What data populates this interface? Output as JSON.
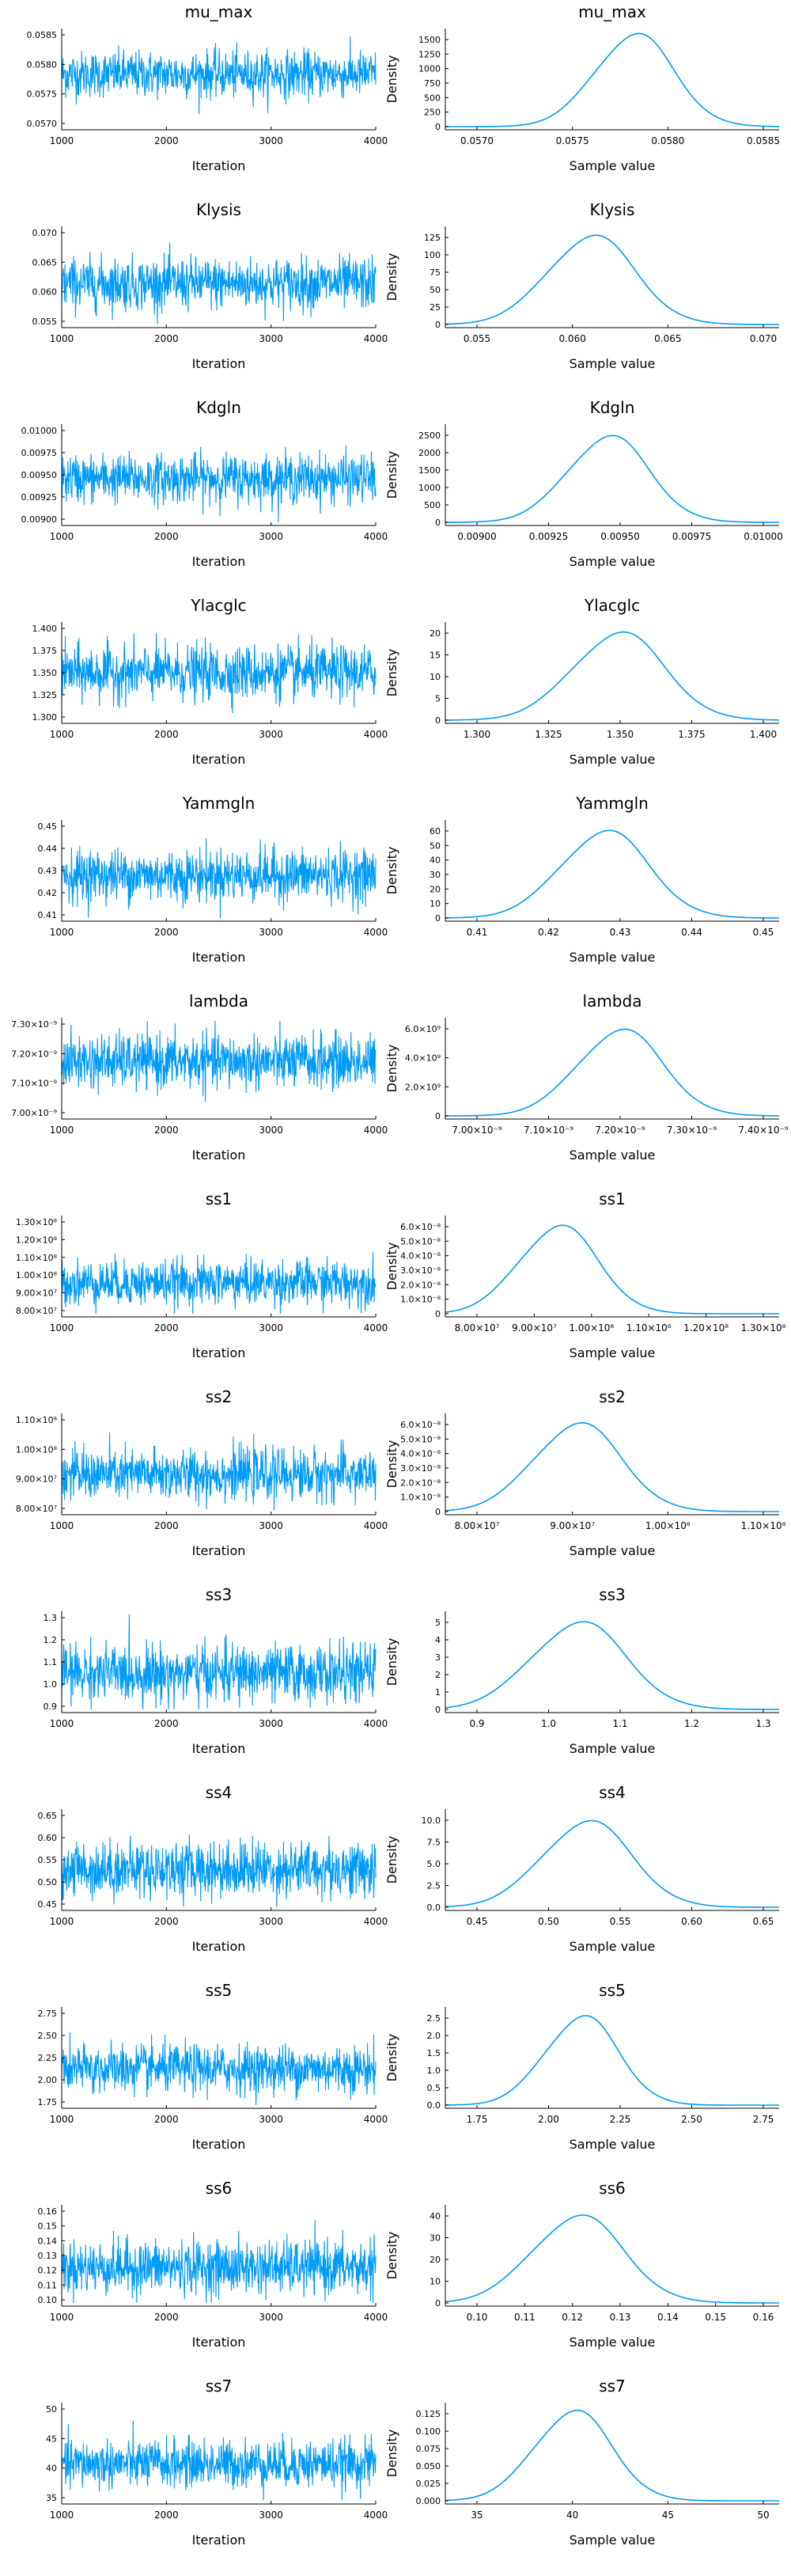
{
  "chart_data": [
    {
      "param": "mu_max",
      "trace": {
        "type": "line",
        "title": "mu_max",
        "xlabel": "Iteration",
        "ylabel": "",
        "xlim": [
          1000,
          4000
        ],
        "yticks": [
          "0.0570",
          "0.0575",
          "0.0580",
          "0.0585"
        ],
        "ylim": [
          0.05685,
          0.05875
        ],
        "mean": 0.0579,
        "sd": 0.00023
      },
      "density": {
        "type": "line",
        "title": "mu_max",
        "xlabel": "Sample value",
        "ylabel": "Density",
        "xticks": [
          "0.0570",
          "0.0575",
          "0.0580",
          "0.0585"
        ],
        "xlim": [
          0.0568,
          0.05875
        ],
        "yticks": [
          "0",
          "250",
          "500",
          "750",
          "1000",
          "1250",
          "1500"
        ],
        "ylim": [
          0,
          1750
        ],
        "peak_x": 0.0579,
        "peak_y": 1700,
        "sd": 0.00023
      }
    },
    {
      "param": "Klysis",
      "trace": {
        "type": "line",
        "title": "Klysis",
        "xlabel": "Iteration",
        "ylabel": "",
        "xlim": [
          1000,
          4000
        ],
        "yticks": [
          "0.055",
          "0.060",
          "0.065",
          "0.070"
        ],
        "ylim": [
          0.0515,
          0.0735
        ],
        "mean": 0.061,
        "sd": 0.003
      },
      "density": {
        "type": "line",
        "title": "Klysis",
        "xlabel": "Sample value",
        "ylabel": "Density",
        "xticks": [
          "0.055",
          "0.060",
          "0.065",
          "0.070"
        ],
        "xlim": [
          0.0505,
          0.0735
        ],
        "yticks": [
          "0",
          "25",
          "50",
          "75",
          "100",
          "125"
        ],
        "ylim": [
          0,
          145
        ],
        "peak_x": 0.0605,
        "peak_y": 135,
        "sd": 0.003
      }
    },
    {
      "param": "Kdgln",
      "trace": {
        "type": "line",
        "title": "Kdgln",
        "xlabel": "Iteration",
        "ylabel": "",
        "xlim": [
          1000,
          4000
        ],
        "yticks": [
          "0.00900",
          "0.00925",
          "0.00950",
          "0.00975",
          "0.01000"
        ],
        "ylim": [
          0.00878,
          0.01012
        ],
        "mean": 0.0094,
        "sd": 0.00017
      },
      "density": {
        "type": "line",
        "title": "Kdgln",
        "xlabel": "Sample value",
        "ylabel": "Density",
        "xticks": [
          "0.00900",
          "0.00925",
          "0.00950",
          "0.00975",
          "0.01000"
        ],
        "xlim": [
          0.00872,
          0.01012
        ],
        "yticks": [
          "0",
          "500",
          "1000",
          "1500",
          "2000",
          "2500"
        ],
        "ylim": [
          0,
          2650
        ],
        "peak_x": 0.0094,
        "peak_y": 2400,
        "sd": 0.00017
      }
    },
    {
      "param": "Ylacglc",
      "trace": {
        "type": "line",
        "title": "Ylacglc",
        "xlabel": "Iteration",
        "ylabel": "",
        "xlim": [
          1000,
          4000
        ],
        "yticks": [
          "1.300",
          "1.325",
          "1.350",
          "1.375",
          "1.400"
        ],
        "ylim": [
          1.288,
          1.408
        ],
        "mean": 1.348,
        "sd": 0.017
      },
      "density": {
        "type": "line",
        "title": "Ylacglc",
        "xlabel": "Sample value",
        "ylabel": "Density",
        "xticks": [
          "1.300",
          "1.325",
          "1.350",
          "1.375",
          "1.400"
        ],
        "xlim": [
          1.284,
          1.408
        ],
        "yticks": [
          "0",
          "5",
          "10",
          "15",
          "20"
        ],
        "ylim": [
          0,
          25
        ],
        "peak_x": 1.348,
        "peak_y": 23,
        "sd": 0.017
      }
    },
    {
      "param": "Yammgln",
      "trace": {
        "type": "line",
        "title": "Yammgln",
        "xlabel": "Iteration",
        "ylabel": "",
        "xlim": [
          1000,
          4000
        ],
        "yticks": [
          "0.41",
          "0.42",
          "0.43",
          "0.44",
          "0.45"
        ],
        "ylim": [
          0.4085,
          0.4535
        ],
        "mean": 0.4288,
        "sd": 0.0062
      },
      "density": {
        "type": "line",
        "title": "Yammgln",
        "xlabel": "Sample value",
        "ylabel": "Density",
        "xticks": [
          "0.41",
          "0.42",
          "0.43",
          "0.44",
          "0.45"
        ],
        "xlim": [
          0.4065,
          0.4535
        ],
        "yticks": [
          "0",
          "10",
          "20",
          "30",
          "40",
          "50",
          "60"
        ],
        "ylim": [
          0,
          70
        ],
        "peak_x": 0.4288,
        "peak_y": 64,
        "sd": 0.0062
      }
    },
    {
      "param": "lambda",
      "trace": {
        "type": "line",
        "title": "lambda",
        "xlabel": "Iteration",
        "ylabel": "",
        "xlim": [
          1000,
          4000
        ],
        "yticks": [
          "7.00×10⁻⁹",
          "7.10×10⁻⁹",
          "7.20×10⁻⁹",
          "7.30×10⁻⁹"
        ],
        "ylim": [
          6.94,
          7.36
        ],
        "mean": 7.18,
        "sd": 0.06
      },
      "density": {
        "type": "line",
        "title": "lambda",
        "xlabel": "Sample value",
        "ylabel": "Density",
        "xticks": [
          "7.00×10⁻⁹",
          "7.10×10⁻⁹",
          "7.20×10⁻⁹",
          "7.30×10⁻⁹",
          "7.40×10⁻⁹"
        ],
        "xlim": [
          6.935,
          7.405
        ],
        "yticks": [
          "0",
          "2.0×10⁹",
          "4.0×10⁹",
          "6.0×10⁹"
        ],
        "ylim": [
          0,
          7.3
        ],
        "peak_x": 7.18,
        "peak_y": 6.6,
        "sd": 0.06
      }
    },
    {
      "param": "ss1",
      "trace": {
        "type": "line",
        "title": "ss1",
        "xlabel": "Iteration",
        "ylabel": "",
        "xlim": [
          1000,
          4000
        ],
        "yticks": [
          "8.00×10⁷",
          "9.00×10⁷",
          "1.00×10⁸",
          "1.10×10⁸",
          "1.20×10⁸",
          "1.30×10⁸"
        ],
        "ylim": [
          7.6,
          13.1
        ],
        "mean": 9.4,
        "sd": 0.65
      },
      "density": {
        "type": "line",
        "title": "ss1",
        "xlabel": "Sample value",
        "ylabel": "Density",
        "xticks": [
          "8.00×10⁷",
          "9.00×10⁷",
          "1.00×10⁸",
          "1.10×10⁸",
          "1.20×10⁸",
          "1.30×10⁸"
        ],
        "xlim": [
          7.55,
          13.05
        ],
        "yticks": [
          "0",
          "1.0×10⁻⁸",
          "2.0×10⁻⁸",
          "3.0×10⁻⁸",
          "4.0×10⁻⁸",
          "5.0×10⁻⁸",
          "6.0×10⁻⁸"
        ],
        "ylim": [
          0,
          6.5
        ],
        "peak_x": 9.4,
        "peak_y": 6.0,
        "sd": 0.65
      }
    },
    {
      "param": "ss2",
      "trace": {
        "type": "line",
        "title": "ss2",
        "xlabel": "Iteration",
        "ylabel": "",
        "xlim": [
          1000,
          4000
        ],
        "yticks": [
          "8.00×10⁷",
          "9.00×10⁷",
          "1.00×10⁸",
          "1.10×10⁸"
        ],
        "ylim": [
          7.2,
          11.3
        ],
        "mean": 8.8,
        "sd": 0.55
      },
      "density": {
        "type": "line",
        "title": "ss2",
        "xlabel": "Sample value",
        "ylabel": "Density",
        "xticks": [
          "8.00×10⁷",
          "9.00×10⁷",
          "1.00×10⁸",
          "1.10×10⁸"
        ],
        "xlim": [
          7.15,
          11.35
        ],
        "yticks": [
          "0",
          "1.0×10⁻⁸",
          "2.0×10⁻⁸",
          "3.0×10⁻⁸",
          "4.0×10⁻⁸",
          "5.0×10⁻⁸",
          "6.0×10⁻⁸"
        ],
        "ylim": [
          0,
          6.8
        ],
        "peak_x": 8.8,
        "peak_y": 6.3,
        "sd": 0.55
      }
    },
    {
      "param": "ss3",
      "trace": {
        "type": "line",
        "title": "ss3",
        "xlabel": "Iteration",
        "ylabel": "",
        "xlim": [
          1000,
          4000
        ],
        "yticks": [
          "0.9",
          "1.0",
          "1.1",
          "1.2",
          "1.3"
        ],
        "ylim": [
          0.86,
          1.36
        ],
        "mean": 1.05,
        "sd": 0.075
      },
      "density": {
        "type": "line",
        "title": "ss3",
        "xlabel": "Sample value",
        "ylabel": "Density",
        "xticks": [
          "0.9",
          "1.0",
          "1.1",
          "1.2",
          "1.3"
        ],
        "xlim": [
          0.84,
          1.37
        ],
        "yticks": [
          "0",
          "1",
          "2",
          "3",
          "4",
          "5"
        ],
        "ylim": [
          0,
          5.9
        ],
        "peak_x": 1.05,
        "peak_y": 5.4,
        "sd": 0.075
      }
    },
    {
      "param": "ss4",
      "trace": {
        "type": "line",
        "title": "ss4",
        "xlabel": "Iteration",
        "ylabel": "",
        "xlim": [
          1000,
          4000
        ],
        "yticks": [
          "0.45",
          "0.50",
          "0.55",
          "0.60",
          "0.65"
        ],
        "ylim": [
          0.42,
          0.68
        ],
        "mean": 0.525,
        "sd": 0.038
      },
      "density": {
        "type": "line",
        "title": "ss4",
        "xlabel": "Sample value",
        "ylabel": "Density",
        "xticks": [
          "0.45",
          "0.50",
          "0.55",
          "0.60",
          "0.65"
        ],
        "xlim": [
          0.405,
          0.69
        ],
        "yticks": [
          "0.0",
          "2.5",
          "5.0",
          "7.5",
          "10.0"
        ],
        "ylim": [
          0,
          11.5
        ],
        "peak_x": 0.525,
        "peak_y": 10.4,
        "sd": 0.038
      }
    },
    {
      "param": "ss5",
      "trace": {
        "type": "line",
        "title": "ss5",
        "xlabel": "Iteration",
        "ylabel": "",
        "xlim": [
          1000,
          4000
        ],
        "yticks": [
          "1.75",
          "2.00",
          "2.25",
          "2.50",
          "2.75"
        ],
        "ylim": [
          1.7,
          2.8
        ],
        "mean": 2.12,
        "sd": 0.14
      },
      "density": {
        "type": "line",
        "title": "ss5",
        "xlabel": "Sample value",
        "ylabel": "Density",
        "xticks": [
          "1.75",
          "2.00",
          "2.25",
          "2.50",
          "2.75"
        ],
        "xlim": [
          1.6,
          2.88
        ],
        "yticks": [
          "0.0",
          "0.5",
          "1.0",
          "1.5",
          "2.0",
          "2.5"
        ],
        "ylim": [
          0,
          3.0
        ],
        "peak_x": 2.12,
        "peak_y": 2.8,
        "sd": 0.14
      }
    },
    {
      "param": "ss6",
      "trace": {
        "type": "line",
        "title": "ss6",
        "xlabel": "Iteration",
        "ylabel": "",
        "xlim": [
          1000,
          4000
        ],
        "yticks": [
          "0.10",
          "0.11",
          "0.12",
          "0.13",
          "0.14",
          "0.15",
          "0.16"
        ],
        "ylim": [
          0.098,
          0.162
        ],
        "mean": 0.122,
        "sd": 0.009
      },
      "density": {
        "type": "line",
        "title": "ss6",
        "xlabel": "Sample value",
        "ylabel": "Density",
        "xticks": [
          "0.10",
          "0.11",
          "0.12",
          "0.13",
          "0.14",
          "0.15",
          "0.16"
        ],
        "xlim": [
          0.096,
          0.162
        ],
        "yticks": [
          "0",
          "10",
          "20",
          "30",
          "40"
        ],
        "ylim": [
          0,
          48
        ],
        "peak_x": 0.122,
        "peak_y": 44,
        "sd": 0.009
      }
    },
    {
      "param": "ss7",
      "trace": {
        "type": "line",
        "title": "ss7",
        "xlabel": "Iteration",
        "ylabel": "",
        "xlim": [
          1000,
          4000
        ],
        "yticks": [
          "35",
          "40",
          "45",
          "50"
        ],
        "ylim": [
          31,
          54
        ],
        "mean": 40,
        "sd": 2.9
      },
      "density": {
        "type": "line",
        "title": "ss7",
        "xlabel": "Sample value",
        "ylabel": "Density",
        "xticks": [
          "35",
          "40",
          "45",
          "50"
        ],
        "xlim": [
          30,
          55
        ],
        "yticks": [
          "0.000",
          "0.025",
          "0.050",
          "0.075",
          "0.100",
          "0.125"
        ],
        "ylim": [
          0,
          0.145
        ],
        "peak_x": 39.5,
        "peak_y": 0.137,
        "sd": 2.9
      }
    }
  ],
  "style": {
    "series_color": "#009AF9",
    "axis_color": "#000000",
    "grid": false
  }
}
